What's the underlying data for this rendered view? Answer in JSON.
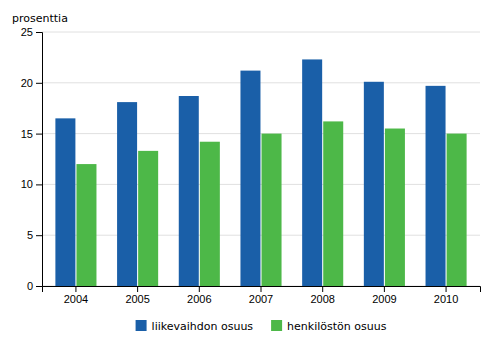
{
  "chart_data": {
    "type": "bar",
    "categories": [
      "2004",
      "2005",
      "2006",
      "2007",
      "2008",
      "2009",
      "2010"
    ],
    "series": [
      {
        "name": "liikevaihdon osuus",
        "color": "#1A5FA8",
        "values": [
          16.5,
          18.1,
          18.7,
          21.2,
          22.3,
          20.1,
          19.7
        ]
      },
      {
        "name": "henkilöstön osuus",
        "color": "#4DB848",
        "values": [
          12.0,
          13.3,
          14.2,
          15.0,
          16.2,
          15.5,
          15.0
        ]
      }
    ],
    "ylabel": "prosenttia",
    "ylim": [
      0,
      25
    ],
    "yticks": [
      0,
      5,
      10,
      15,
      20,
      25
    ],
    "grid": true,
    "legend": "bottom"
  }
}
